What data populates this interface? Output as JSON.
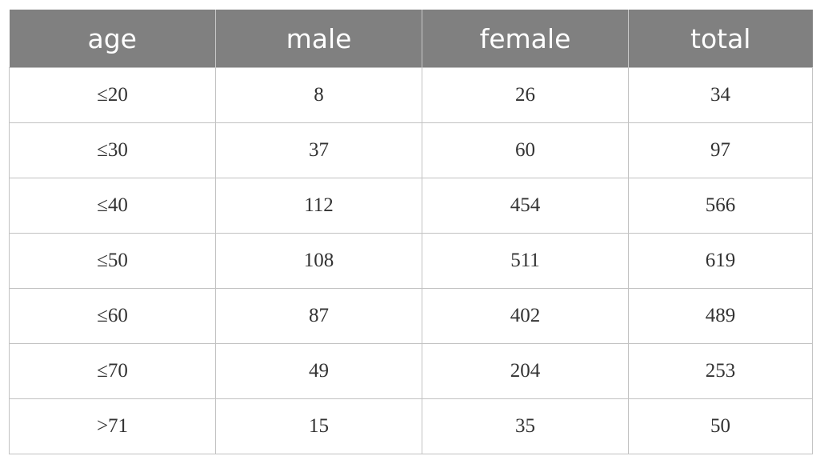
{
  "table": {
    "header": [
      "age",
      "male",
      "female",
      "total"
    ],
    "rows": [
      [
        "≤20",
        8,
        26,
        34
      ],
      [
        "≤30",
        37,
        60,
        97
      ],
      [
        "≤40",
        112,
        454,
        566
      ],
      [
        "≤50",
        108,
        511,
        619
      ],
      [
        "≤60",
        87,
        402,
        489
      ],
      [
        "≤70",
        49,
        204,
        253
      ],
      [
        ">71",
        15,
        35,
        50
      ]
    ]
  }
}
